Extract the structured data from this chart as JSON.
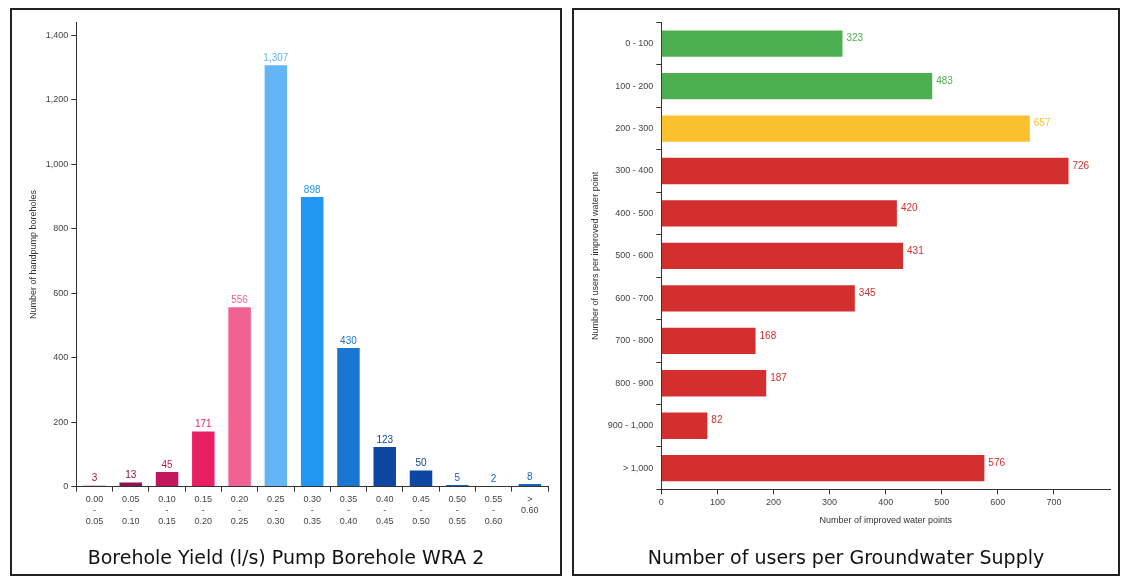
{
  "chart_data": [
    {
      "type": "bar",
      "title": "Borehole Yield (l/s) Pump Borehole WRA 2",
      "ylabel": "Number of handpump boreholes",
      "categories": [
        "0.00 - 0.05",
        "0.05 - 0.10",
        "0.10 - 0.15",
        "0.15 - 0.20",
        "0.20 - 0.25",
        "0.25 - 0.30",
        "0.30 - 0.35",
        "0.35 - 0.40",
        "0.40 - 0.45",
        "0.45 - 0.50",
        "0.50 - 0.55",
        "0.55 - 0.60",
        "> 0.60"
      ],
      "values": [
        3,
        13,
        45,
        171,
        556,
        1307,
        898,
        430,
        123,
        50,
        5,
        2,
        8
      ],
      "colors": [
        "#a3164f",
        "#8c1450",
        "#c2185b",
        "#e91e63",
        "#f06292",
        "#64b5f6",
        "#2196f3",
        "#1976d2",
        "#0d47a1",
        "#0d47a1",
        "#1565c0",
        "#1565c0",
        "#1565c0"
      ],
      "value_labels": [
        "3",
        "13",
        "45",
        "171",
        "556",
        "1,307",
        "898",
        "430",
        "123",
        "50",
        "5",
        "2",
        "8"
      ],
      "ylim": [
        0,
        1440
      ],
      "yticks": [
        0,
        {
          "value": 200,
          "label": "200"
        },
        {
          "value": 400,
          "label": "400"
        },
        {
          "value": 600,
          "label": "600"
        },
        {
          "value": 800,
          "label": "800"
        },
        {
          "value": 1000,
          "label": "1,000"
        },
        {
          "value": 1200,
          "label": "1,200"
        },
        {
          "value": 1400,
          "label": "1,400"
        }
      ],
      "grid": false,
      "legend": false
    },
    {
      "type": "bar",
      "orientation": "horizontal",
      "title": "Number of users per Groundwater Supply",
      "xlabel": "Number of improved water points",
      "ylabel": "Number of users per improved water point",
      "categories": [
        "0 - 100",
        "100 - 200",
        "200 - 300",
        "300 - 400",
        "400 - 500",
        "500 - 600",
        "600 - 700",
        "700 - 800",
        "800 - 900",
        "900 - 1,000",
        "> 1,000"
      ],
      "values": [
        323,
        483,
        657,
        726,
        420,
        431,
        345,
        168,
        187,
        82,
        576
      ],
      "colors": [
        "#4caf50",
        "#4caf50",
        "#fbc02d",
        "#d32f2f",
        "#d32f2f",
        "#d32f2f",
        "#d32f2f",
        "#d32f2f",
        "#d32f2f",
        "#d32f2f",
        "#d32f2f"
      ],
      "data_labels": true,
      "xlim": [
        0,
        800
      ],
      "xticks": [
        0,
        100,
        200,
        300,
        400,
        500,
        600,
        700
      ],
      "grid": false,
      "legend": false
    }
  ]
}
